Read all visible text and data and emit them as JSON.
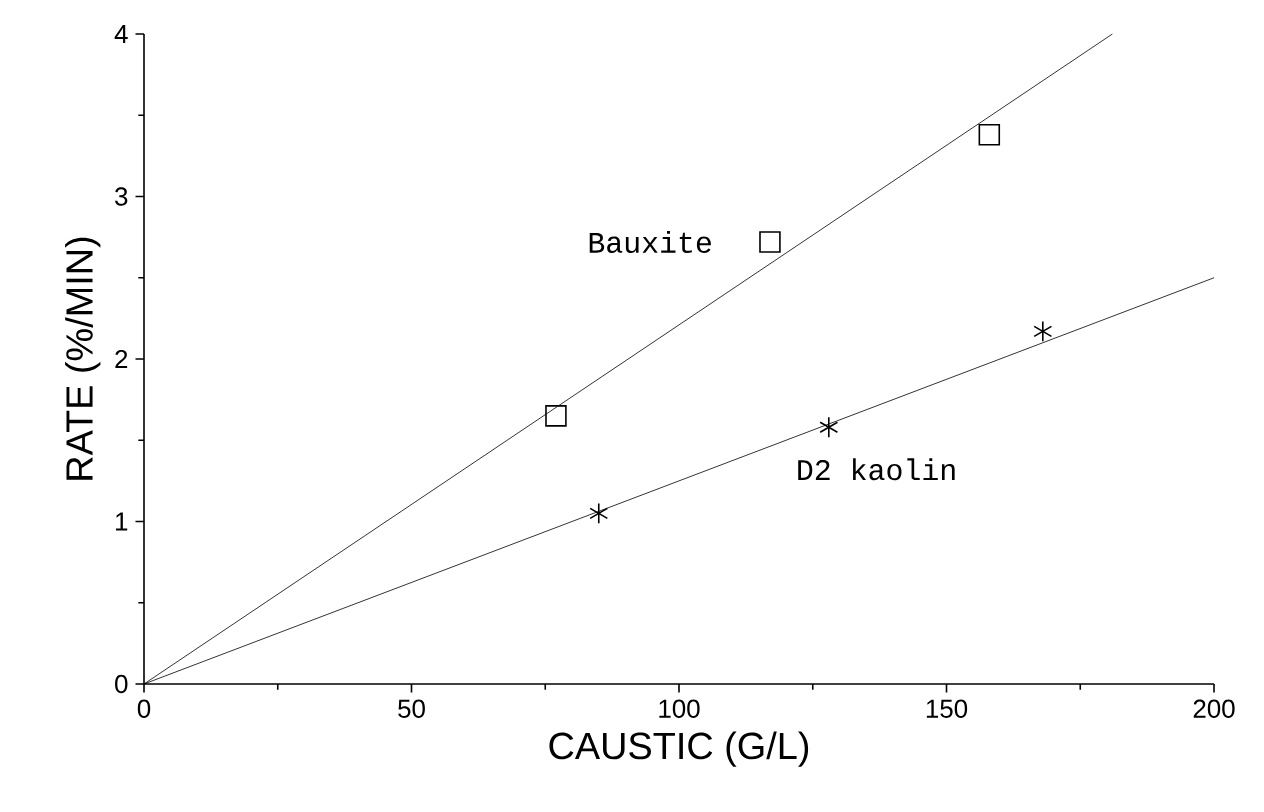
{
  "chart_data": {
    "type": "scatter",
    "xlabel": "CAUSTIC (G/L)",
    "ylabel": "RATE (%/MIN)",
    "xlim": [
      0,
      200
    ],
    "ylim": [
      0,
      4
    ],
    "xticks": [
      0,
      50,
      100,
      150,
      200
    ],
    "yticks": [
      0,
      1,
      2,
      3,
      4
    ],
    "grid": false,
    "series": [
      {
        "name": "Bauxite",
        "marker": "square",
        "color": "#000000",
        "x": [
          77,
          117,
          158
        ],
        "values": [
          1.65,
          2.72,
          3.38
        ]
      },
      {
        "name": "D2 kaolin",
        "marker": "cross",
        "color": "#000000",
        "x": [
          85,
          128,
          168
        ],
        "values": [
          1.05,
          1.58,
          2.17
        ]
      },
      {
        "type": "line",
        "marker": "none",
        "color": "#000000",
        "x": [
          0,
          181
        ],
        "values": [
          0,
          4.0
        ]
      },
      {
        "type": "line",
        "marker": "none",
        "color": "#000000",
        "x": [
          0,
          200
        ],
        "values": [
          0,
          2.5
        ]
      }
    ]
  }
}
